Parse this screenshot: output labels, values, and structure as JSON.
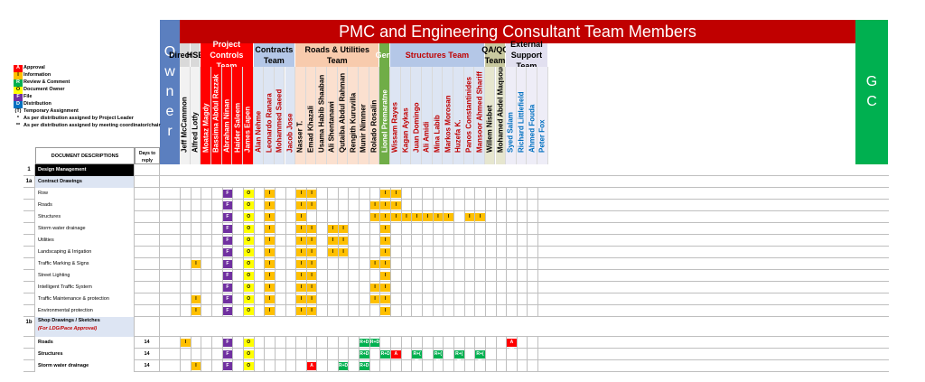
{
  "title": "PMC and Engineering Consultant Team Members",
  "owner_label": "Owner",
  "gc_label": "G C",
  "legend": [
    {
      "code": "A",
      "text": "Approval",
      "color": "#ff0000"
    },
    {
      "code": "I",
      "text": "Information",
      "color": "#ffc000"
    },
    {
      "code": "R",
      "text": "Review & Comment",
      "color": "#00b050"
    },
    {
      "code": "O",
      "text": "Document Owner",
      "color": "#ffff00"
    },
    {
      "code": "F",
      "text": "File",
      "color": "#7030a0"
    },
    {
      "code": "D",
      "text": "Distribution",
      "color": "#0070c0"
    },
    {
      "code": "(T)",
      "text": "Temporary Assignment",
      "color": ""
    },
    {
      "code": "*",
      "text": "As per distribution assigned by Project Leader",
      "color": ""
    },
    {
      "code": "**",
      "text": "As per distribution assigned by meeting coordinator/chair",
      "color": ""
    }
  ],
  "col_header_doc": "DOCUMENT DESCRIPTIONS",
  "col_header_days": "Days to reply",
  "teams": [
    {
      "name": "Director",
      "bg": "#d9d9d9",
      "color": "#000"
    },
    {
      "name": "HSE",
      "bg": "#d9d9d9",
      "color": "#000"
    },
    {
      "name": "Project Controls Team",
      "bg": "#ff0000",
      "color": "#fff"
    },
    {
      "name": "Contracts Team",
      "bg": "#b4c7e7",
      "color": "#000"
    },
    {
      "name": "Roads & Utilities Team",
      "bg": "#f8cbad",
      "color": "#000"
    },
    {
      "name": "Gen.",
      "bg": "#70ad47",
      "color": "#fff"
    },
    {
      "name": "Structures Team",
      "bg": "#b4c7e7",
      "color": "#c00000"
    },
    {
      "name": "QA/QC Team",
      "bg": "#c9c9a0",
      "color": "#000"
    },
    {
      "name": "External Support Team",
      "bg": "#e2e0f0",
      "color": "#000"
    }
  ],
  "members": [
    {
      "name": "Jeff McCammon",
      "color": "#000"
    },
    {
      "name": "Alfred Lotfy",
      "color": "#000"
    },
    {
      "name": "Moataz Magdy",
      "color": "#fff"
    },
    {
      "name": "Bassima Abdul Razzak",
      "color": "#fff"
    },
    {
      "name": "Abraham Ninan",
      "color": "#fff"
    },
    {
      "name": "Haider Saleem",
      "color": "#fff"
    },
    {
      "name": "James Eapen",
      "color": "#fff"
    },
    {
      "name": "Alan Nehme",
      "color": "#c00000"
    },
    {
      "name": "Leonardo Ranara",
      "color": "#c00000"
    },
    {
      "name": "Mohammed Saeed",
      "color": "#c00000"
    },
    {
      "name": "Jacob Jose",
      "color": "#c00000"
    },
    {
      "name": "Nasser T.",
      "color": "#000"
    },
    {
      "name": "Emad Khazali",
      "color": "#000"
    },
    {
      "name": "Usama Habib Shaaban",
      "color": "#000"
    },
    {
      "name": "Ali Shentanawi",
      "color": "#000"
    },
    {
      "name": "Qutaiba Abdul Rahman",
      "color": "#000"
    },
    {
      "name": "Rengith Kuruvilla",
      "color": "#000"
    },
    {
      "name": "Munir Nimmer",
      "color": "#000"
    },
    {
      "name": "Rolado Rosalin",
      "color": "#000"
    },
    {
      "name": "Lionel Premaratne",
      "color": "#fff"
    },
    {
      "name": "Wissam Rayes",
      "color": "#c00000"
    },
    {
      "name": "Kagan Aykas",
      "color": "#c00000"
    },
    {
      "name": "Juan Domingo",
      "color": "#c00000"
    },
    {
      "name": "Ali Amidi",
      "color": "#c00000"
    },
    {
      "name": "Mina Labib",
      "color": "#c00000"
    },
    {
      "name": "Markos Morosan",
      "color": "#c00000"
    },
    {
      "name": "Huzefa K.",
      "color": "#c00000"
    },
    {
      "name": "Panos Constantinides",
      "color": "#c00000"
    },
    {
      "name": "Mansoor Ahmed Shariff",
      "color": "#c00000"
    },
    {
      "name": "Willem Nisbet",
      "color": "#000"
    },
    {
      "name": "Mohamed Abdel Maqsoud",
      "color": "#000"
    },
    {
      "name": "Syed Salam",
      "color": "#0070c0"
    },
    {
      "name": "Richard Littlefield",
      "color": "#0070c0"
    },
    {
      "name": "Ahmed Fouda",
      "color": "#0070c0"
    },
    {
      "name": "Peter Fox",
      "color": "#0070c0"
    }
  ],
  "rows": [
    {
      "num": "1",
      "label": "Design Management",
      "type": "section-dark",
      "days": "",
      "cells": []
    },
    {
      "num": "1a",
      "label": "Contract Drawings",
      "type": "section",
      "days": "",
      "cells": []
    },
    {
      "num": "",
      "label": "Row",
      "type": "item",
      "days": "",
      "cells": [
        [
          4,
          "F"
        ],
        [
          6,
          "O"
        ],
        [
          8,
          "I"
        ],
        [
          11,
          "I"
        ],
        [
          12,
          "I"
        ],
        [
          19,
          "I"
        ],
        [
          20,
          "I"
        ]
      ]
    },
    {
      "num": "",
      "label": "Roads",
      "type": "item",
      "days": "",
      "cells": [
        [
          4,
          "F"
        ],
        [
          6,
          "O"
        ],
        [
          8,
          "I"
        ],
        [
          11,
          "I"
        ],
        [
          12,
          "I"
        ],
        [
          18,
          "I"
        ],
        [
          19,
          "I"
        ],
        [
          20,
          "I"
        ]
      ]
    },
    {
      "num": "",
      "label": "Structures",
      "type": "item",
      "days": "",
      "cells": [
        [
          4,
          "F"
        ],
        [
          6,
          "O"
        ],
        [
          8,
          "I"
        ],
        [
          11,
          "I"
        ],
        [
          18,
          "I"
        ],
        [
          19,
          "I"
        ],
        [
          20,
          "I"
        ],
        [
          21,
          "I"
        ],
        [
          22,
          "I"
        ],
        [
          23,
          "I"
        ],
        [
          24,
          "I"
        ],
        [
          25,
          "I"
        ],
        [
          27,
          "I"
        ],
        [
          28,
          "I"
        ]
      ]
    },
    {
      "num": "",
      "label": "Storm water drainage",
      "type": "item",
      "days": "",
      "cells": [
        [
          4,
          "F"
        ],
        [
          6,
          "O"
        ],
        [
          8,
          "I"
        ],
        [
          11,
          "I"
        ],
        [
          12,
          "I"
        ],
        [
          14,
          "I"
        ],
        [
          15,
          "I"
        ],
        [
          19,
          "I"
        ]
      ]
    },
    {
      "num": "",
      "label": "Utilities",
      "type": "item",
      "days": "",
      "cells": [
        [
          4,
          "F"
        ],
        [
          6,
          "O"
        ],
        [
          8,
          "I"
        ],
        [
          11,
          "I"
        ],
        [
          12,
          "I"
        ],
        [
          14,
          "I"
        ],
        [
          15,
          "I"
        ],
        [
          19,
          "I"
        ]
      ]
    },
    {
      "num": "",
      "label": "Landscaping & Irrigation",
      "type": "item",
      "days": "",
      "cells": [
        [
          4,
          "F"
        ],
        [
          6,
          "O"
        ],
        [
          8,
          "I"
        ],
        [
          11,
          "I"
        ],
        [
          12,
          "I"
        ],
        [
          14,
          "I"
        ],
        [
          15,
          "I"
        ],
        [
          19,
          "I"
        ]
      ]
    },
    {
      "num": "",
      "label": "Traffic Marking & Signs",
      "type": "item",
      "days": "",
      "cells": [
        [
          1,
          "I"
        ],
        [
          4,
          "F"
        ],
        [
          6,
          "O"
        ],
        [
          8,
          "I"
        ],
        [
          11,
          "I"
        ],
        [
          12,
          "I"
        ],
        [
          18,
          "I"
        ],
        [
          19,
          "I"
        ]
      ]
    },
    {
      "num": "",
      "label": "Street Lighting",
      "type": "item",
      "days": "",
      "cells": [
        [
          4,
          "F"
        ],
        [
          6,
          "O"
        ],
        [
          8,
          "I"
        ],
        [
          11,
          "I"
        ],
        [
          12,
          "I"
        ],
        [
          19,
          "I"
        ]
      ]
    },
    {
      "num": "",
      "label": "Intelligent Traffic System",
      "type": "item",
      "days": "",
      "cells": [
        [
          4,
          "F"
        ],
        [
          6,
          "O"
        ],
        [
          8,
          "I"
        ],
        [
          11,
          "I"
        ],
        [
          12,
          "I"
        ],
        [
          18,
          "I"
        ],
        [
          19,
          "I"
        ]
      ]
    },
    {
      "num": "",
      "label": "Traffic Maintenance & protection",
      "type": "item",
      "days": "",
      "cells": [
        [
          1,
          "I"
        ],
        [
          4,
          "F"
        ],
        [
          6,
          "O"
        ],
        [
          8,
          "I"
        ],
        [
          11,
          "I"
        ],
        [
          12,
          "I"
        ],
        [
          18,
          "I"
        ],
        [
          19,
          "I"
        ]
      ]
    },
    {
      "num": "",
      "label": "Environmental protection",
      "type": "item",
      "days": "",
      "cells": [
        [
          1,
          "I"
        ],
        [
          4,
          "F"
        ],
        [
          6,
          "O"
        ],
        [
          8,
          "I"
        ],
        [
          11,
          "I"
        ],
        [
          12,
          "I"
        ],
        [
          19,
          "I"
        ]
      ]
    },
    {
      "num": "1b",
      "label": "Shop Drawings / Sketches",
      "sub": "(For LDG/Pace Approval)",
      "type": "section",
      "days": "",
      "cells": []
    },
    {
      "num": "",
      "label": "Roads",
      "type": "item-bold",
      "days": "14",
      "cells": [
        [
          0,
          "I"
        ],
        [
          4,
          "F"
        ],
        [
          6,
          "O"
        ],
        [
          17,
          "R+D"
        ],
        [
          18,
          "R+D"
        ],
        [
          31,
          "A (T)"
        ]
      ]
    },
    {
      "num": "",
      "label": "Structures",
      "type": "item-bold",
      "days": "14",
      "cells": [
        [
          4,
          "F"
        ],
        [
          6,
          "O"
        ],
        [
          17,
          "R+D"
        ],
        [
          19,
          "R+D"
        ],
        [
          20,
          "A"
        ],
        [
          22,
          "R+( T)"
        ],
        [
          24,
          "R+( T)"
        ],
        [
          26,
          "R+( T)"
        ],
        [
          28,
          "R+( T)"
        ]
      ]
    },
    {
      "num": "",
      "label": "Storm water drainage",
      "type": "item-bold",
      "days": "14",
      "cells": [
        [
          1,
          "I"
        ],
        [
          4,
          "F"
        ],
        [
          6,
          "O"
        ],
        [
          12,
          "A"
        ],
        [
          15,
          "R+D"
        ],
        [
          17,
          "R+D"
        ]
      ]
    }
  ]
}
